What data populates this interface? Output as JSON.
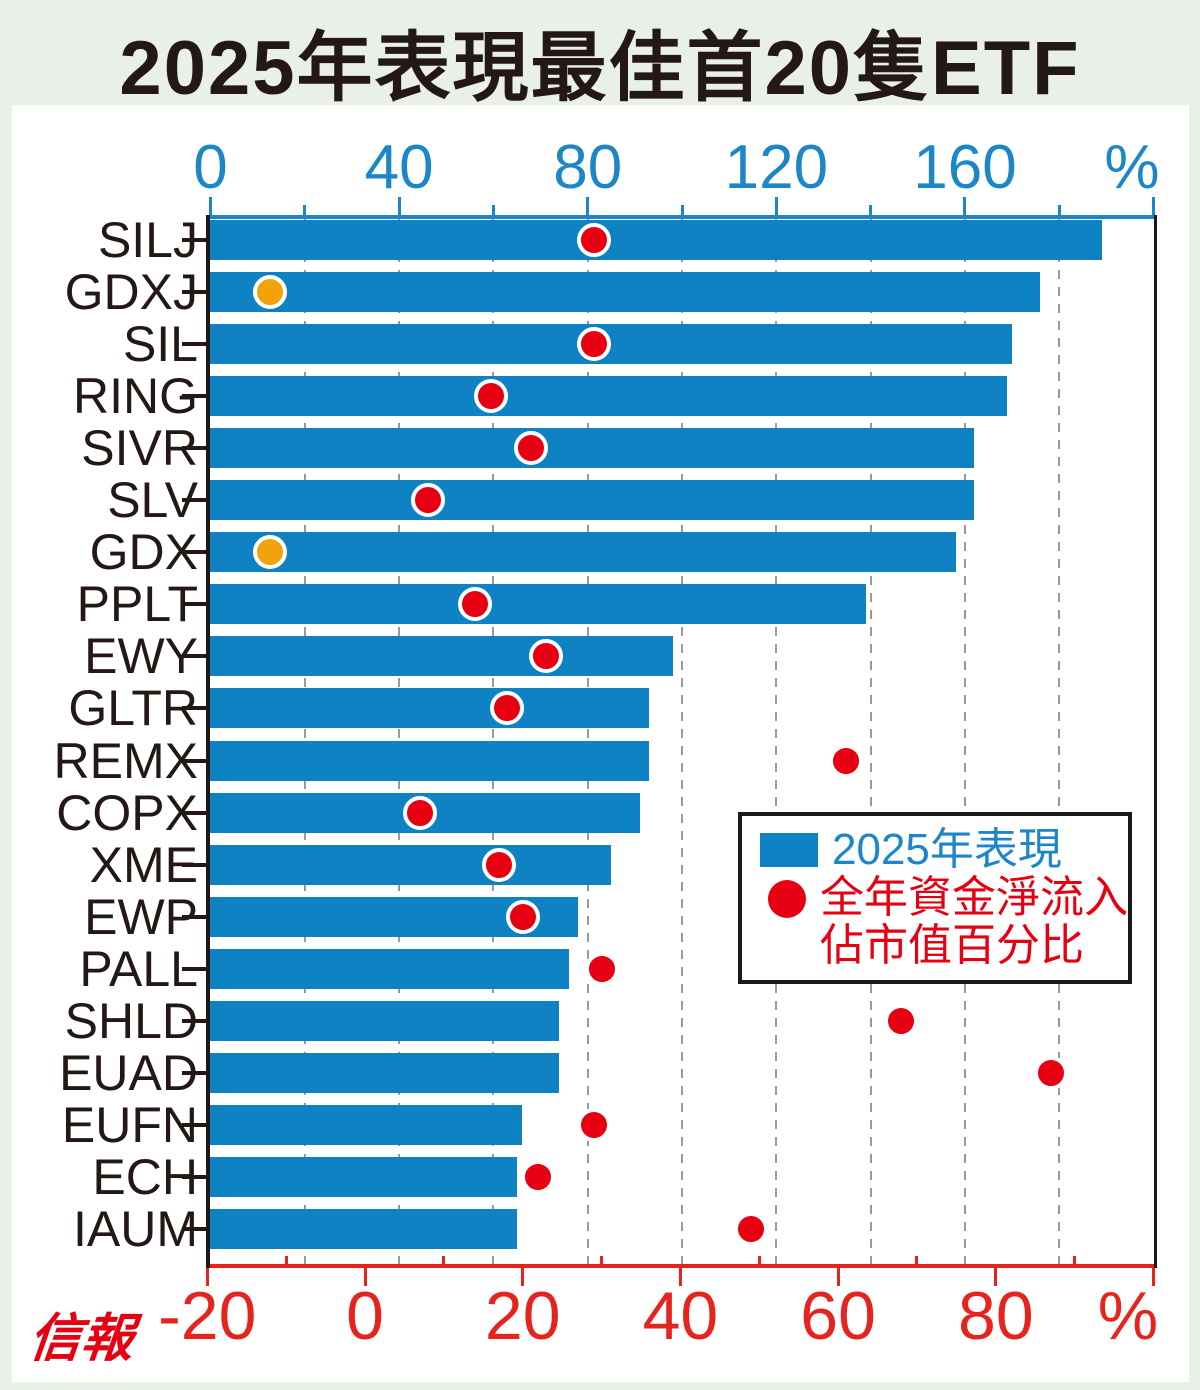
{
  "title": "2025年表現最佳首20隻ETF",
  "logo_text": "信報",
  "legend": {
    "bar_label": "2025年表現",
    "dot_label_line1": "全年資金淨流入",
    "dot_label_line2": "佔市值百分比"
  },
  "colors": {
    "bar_blue": "#0e82c3",
    "axis_blue": "#1d86c8",
    "dot_red": "#e60012",
    "axis_red": "#e6231c",
    "dot_orange": "#f2a30b",
    "grid_gray": "#9a9a9a",
    "background_green": "#e9f0e8",
    "panel_white": "#ffffff",
    "text_black": "#231815"
  },
  "chart_data": {
    "type": "bar",
    "orientation": "horizontal bars (top axis) with dot overlay (bottom axis)",
    "title": "2025年表現最佳首20隻ETF",
    "categories": [
      "SILJ",
      "GDXJ",
      "SIL",
      "RING",
      "SIVR",
      "SLV",
      "GDX",
      "PPLT",
      "EWY",
      "GLTR",
      "REMX",
      "COPX",
      "XME",
      "EWP",
      "PALL",
      "SHLD",
      "EUAD",
      "EUFN",
      "ECH",
      "IAUM"
    ],
    "series": [
      {
        "name": "2025年表現",
        "type": "bar",
        "axis": "top",
        "unit": "%",
        "values": [
          189,
          176,
          170,
          169,
          162,
          162,
          158,
          139,
          98,
          93,
          93,
          91,
          85,
          78,
          76,
          74,
          74,
          66,
          65,
          65
        ]
      },
      {
        "name": "全年資金淨流入佔市值百分比",
        "type": "dot",
        "axis": "bottom",
        "unit": "%",
        "values": [
          29,
          -12,
          29,
          16,
          21,
          8,
          -12,
          14,
          23,
          18,
          61,
          7,
          17,
          20,
          30,
          68,
          87,
          29,
          22,
          49
        ]
      }
    ],
    "top_axis": {
      "min": 0,
      "max": 200,
      "tick_step": 20,
      "label_step": 40,
      "tick_labels": [
        "0",
        "40",
        "80",
        "120",
        "160"
      ],
      "unit_label": "%"
    },
    "bottom_axis": {
      "min": -20,
      "max": 100,
      "tick_step": 10,
      "label_step": 20,
      "tick_labels": [
        "-20",
        "0",
        "20",
        "40",
        "60",
        "80"
      ],
      "unit_label": "%"
    },
    "grid": "vertical dashed gray lines every 20 top-axis units (20–180)",
    "legend_position": "middle-right box",
    "note": "negative dot values (GDXJ, GDX) drawn in orange; all others red"
  }
}
